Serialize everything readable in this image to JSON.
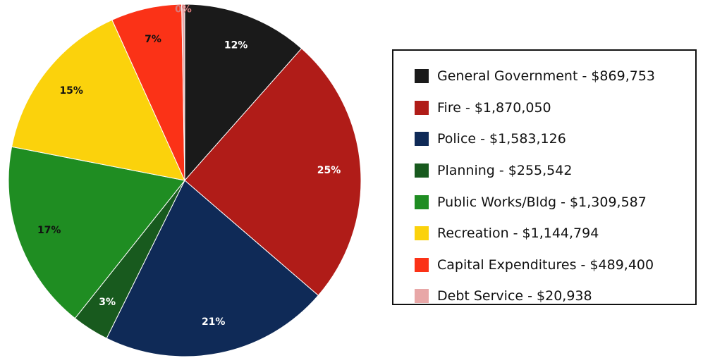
{
  "chart_data": {
    "type": "pie",
    "slices": [
      {
        "label": "General Government - $869,753",
        "value": 869753,
        "pct_label": "12%",
        "color": "#1a1a1a",
        "label_color": "#ffffff"
      },
      {
        "label": "Fire - $1,870,050",
        "value": 1870050,
        "pct_label": "25%",
        "color": "#b01c18",
        "label_color": "#ffffff"
      },
      {
        "label": "Police - $1,583,126",
        "value": 1583126,
        "pct_label": "21%",
        "color": "#0f2a57",
        "label_color": "#ffffff"
      },
      {
        "label": "Planning - $255,542",
        "value": 255542,
        "pct_label": "3%",
        "color": "#185a1e",
        "label_color": "#ffffff"
      },
      {
        "label": "Public Works/Bldg - $1,309,587",
        "value": 1309587,
        "pct_label": "17%",
        "color": "#1f8d22",
        "label_color": "#111111"
      },
      {
        "label": "Recreation - $1,144,794",
        "value": 1144794,
        "pct_label": "15%",
        "color": "#fbd20c",
        "label_color": "#111111"
      },
      {
        "label": "Capital Expenditures - $489,400",
        "value": 489400,
        "pct_label": "7%",
        "color": "#fb3217",
        "label_color": "#111111"
      },
      {
        "label": "Debt Service - $20,938",
        "value": 20938,
        "pct_label": "0%",
        "color": "#e8a7a7",
        "label_color": "#d87a7a"
      }
    ],
    "start_angle": "12 o'clock",
    "direction": "clockwise",
    "legend_position": "right"
  }
}
